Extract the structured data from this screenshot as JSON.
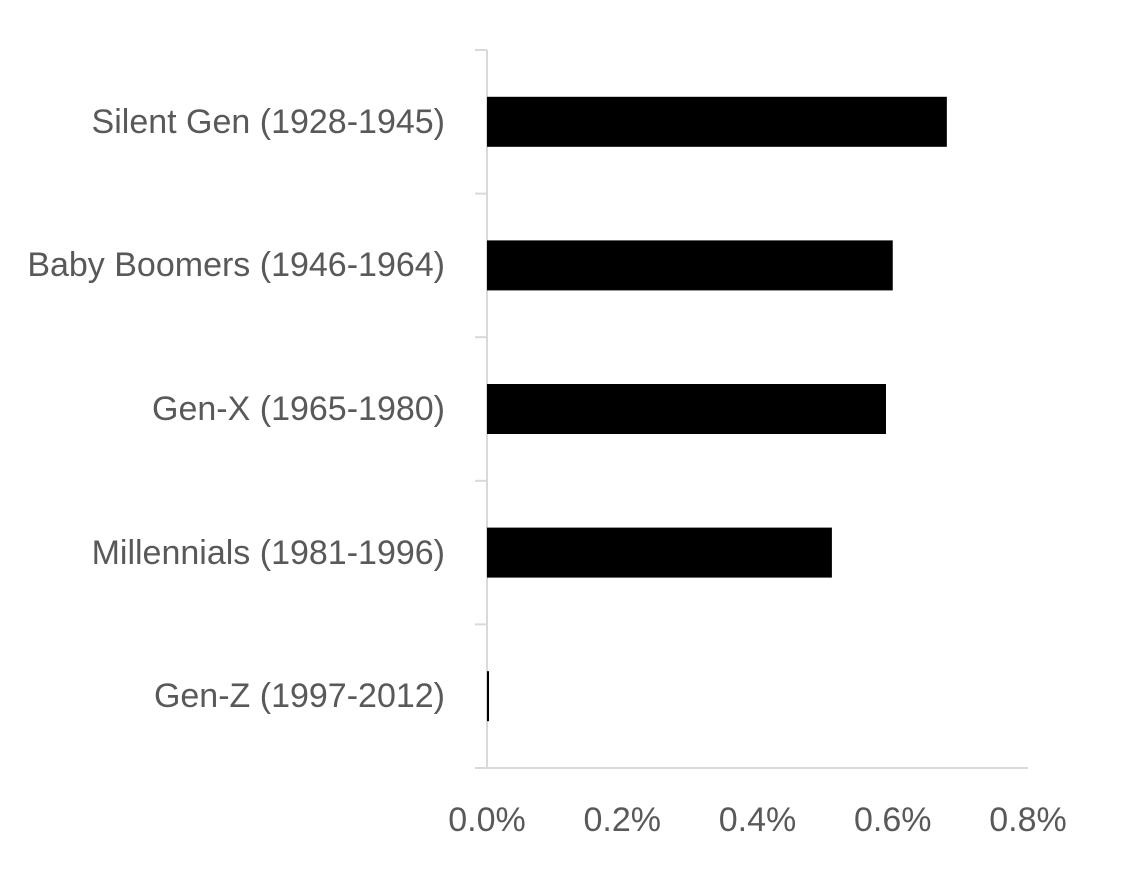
{
  "chart_data": {
    "type": "barh",
    "categories": [
      "Silent Gen (1928-1945)",
      "Baby Boomers (1946-1964)",
      "Gen-X (1965-1980)",
      "Millennials (1981-1996)",
      "Gen-Z (1997-2012)"
    ],
    "values": [
      0.68,
      0.6,
      0.59,
      0.51,
      0.003
    ],
    "color": "#000000",
    "xlim": [
      0,
      0.8
    ],
    "xticks": [
      {
        "value": 0,
        "label": "0.0%"
      },
      {
        "value": 0.2,
        "label": "0.2%"
      },
      {
        "value": 0.4,
        "label": "0.4%"
      },
      {
        "value": 0.6,
        "label": "0.6%"
      },
      {
        "value": 0.8,
        "label": "0.8%"
      }
    ],
    "grid": false
  }
}
